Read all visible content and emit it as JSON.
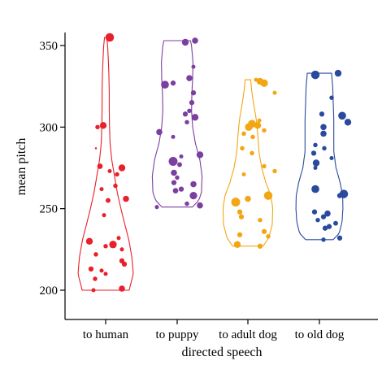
{
  "chart_data": {
    "type": "violin",
    "xlabel": "directed speech",
    "ylabel": "mean pitch",
    "ylim": [
      195,
      357
    ],
    "yticks": [
      200,
      250,
      300,
      350
    ],
    "grid": false,
    "categories": [
      "to human",
      "to puppy",
      "to adult dog",
      "to old dog"
    ],
    "series": [
      {
        "color": "#e8202a",
        "range": [
          200,
          355
        ],
        "density": [
          [
            200,
            0.85
          ],
          [
            210,
            1.0
          ],
          [
            220,
            0.95
          ],
          [
            230,
            0.85
          ],
          [
            240,
            0.7
          ],
          [
            250,
            0.55
          ],
          [
            260,
            0.42
          ],
          [
            270,
            0.32
          ],
          [
            280,
            0.22
          ],
          [
            290,
            0.16
          ],
          [
            300,
            0.14
          ],
          [
            310,
            0.13
          ],
          [
            320,
            0.13
          ],
          [
            330,
            0.12
          ],
          [
            340,
            0.1
          ],
          [
            350,
            0.07
          ],
          [
            355,
            0.04
          ]
        ],
        "points": [
          {
            "y": 355,
            "s": 2.5,
            "dx": 0.05
          },
          {
            "y": 301,
            "s": 2,
            "dx": -0.03
          },
          {
            "y": 300,
            "s": 1.3,
            "dx": -0.1
          },
          {
            "y": 287,
            "s": 0.6,
            "dx": -0.12
          },
          {
            "y": 276,
            "s": 1.6,
            "dx": -0.07
          },
          {
            "y": 275,
            "s": 2,
            "dx": 0.2
          },
          {
            "y": 273,
            "s": 1.2,
            "dx": 0.05
          },
          {
            "y": 271,
            "s": 1.3,
            "dx": 0.14
          },
          {
            "y": 264,
            "s": 1.3,
            "dx": 0.12
          },
          {
            "y": 262,
            "s": 1.2,
            "dx": -0.05
          },
          {
            "y": 256,
            "s": 1.8,
            "dx": 0.25
          },
          {
            "y": 255,
            "s": 1.4,
            "dx": 0.03
          },
          {
            "y": 246,
            "s": 1.2,
            "dx": -0.02
          },
          {
            "y": 232,
            "s": 1.2,
            "dx": 0.16
          },
          {
            "y": 230,
            "s": 2,
            "dx": -0.2
          },
          {
            "y": 228,
            "s": 2.2,
            "dx": 0.09
          },
          {
            "y": 227,
            "s": 1.3,
            "dx": 0.0
          },
          {
            "y": 225,
            "s": 1.2,
            "dx": 0.2
          },
          {
            "y": 222,
            "s": 1.3,
            "dx": -0.12
          },
          {
            "y": 218,
            "s": 1.5,
            "dx": 0.2
          },
          {
            "y": 216,
            "s": 1.5,
            "dx": 0.23
          },
          {
            "y": 213,
            "s": 1.5,
            "dx": -0.18
          },
          {
            "y": 212,
            "s": 1.2,
            "dx": -0.05
          },
          {
            "y": 210,
            "s": 1.2,
            "dx": 0.0
          },
          {
            "y": 207,
            "s": 1.3,
            "dx": -0.13
          },
          {
            "y": 201,
            "s": 1.8,
            "dx": 0.2
          },
          {
            "y": 200,
            "s": 1.2,
            "dx": -0.15
          }
        ]
      },
      {
        "color": "#7b3fa0",
        "range": [
          251,
          353
        ],
        "density": [
          [
            251,
            0.55
          ],
          [
            255,
            0.78
          ],
          [
            260,
            0.88
          ],
          [
            270,
            0.9
          ],
          [
            280,
            0.82
          ],
          [
            290,
            0.66
          ],
          [
            300,
            0.56
          ],
          [
            310,
            0.52
          ],
          [
            320,
            0.53
          ],
          [
            330,
            0.56
          ],
          [
            340,
            0.57
          ],
          [
            350,
            0.52
          ],
          [
            353,
            0.48
          ]
        ],
        "points": [
          {
            "y": 353,
            "s": 1.8,
            "dx": 0.22
          },
          {
            "y": 352,
            "s": 2,
            "dx": 0.1
          },
          {
            "y": 337,
            "s": 1.2,
            "dx": 0.2
          },
          {
            "y": 330,
            "s": 1.8,
            "dx": 0.15
          },
          {
            "y": 327,
            "s": 1.5,
            "dx": -0.05
          },
          {
            "y": 326,
            "s": 2.3,
            "dx": -0.15
          },
          {
            "y": 321,
            "s": 1.5,
            "dx": 0.2
          },
          {
            "y": 315,
            "s": 1.5,
            "dx": 0.18
          },
          {
            "y": 310,
            "s": 1.3,
            "dx": 0.15
          },
          {
            "y": 308,
            "s": 1.5,
            "dx": 0.1
          },
          {
            "y": 306,
            "s": 2,
            "dx": 0.22
          },
          {
            "y": 303,
            "s": 1.3,
            "dx": 0.12
          },
          {
            "y": 297,
            "s": 1.8,
            "dx": -0.22
          },
          {
            "y": 294,
            "s": 1.2,
            "dx": -0.05
          },
          {
            "y": 283,
            "s": 2,
            "dx": 0.28
          },
          {
            "y": 282,
            "s": 1.2,
            "dx": 0.05
          },
          {
            "y": 279,
            "s": 2.6,
            "dx": -0.05
          },
          {
            "y": 277,
            "s": 1.4,
            "dx": 0.03
          },
          {
            "y": 272,
            "s": 1.8,
            "dx": -0.04
          },
          {
            "y": 269,
            "s": 1.3,
            "dx": 0.0
          },
          {
            "y": 266,
            "s": 1.5,
            "dx": -0.04
          },
          {
            "y": 265,
            "s": 1.8,
            "dx": 0.2
          },
          {
            "y": 262,
            "s": 1.5,
            "dx": 0.05
          },
          {
            "y": 261,
            "s": 1.6,
            "dx": -0.02
          },
          {
            "y": 258,
            "s": 2.2,
            "dx": 0.2
          },
          {
            "y": 253,
            "s": 1.3,
            "dx": 0.12
          },
          {
            "y": 252,
            "s": 1.8,
            "dx": 0.28
          },
          {
            "y": 251,
            "s": 1.2,
            "dx": -0.25
          }
        ]
      },
      {
        "color": "#f3a614",
        "range": [
          227,
          329
        ],
        "density": [
          [
            227,
            0.55
          ],
          [
            232,
            0.75
          ],
          [
            240,
            0.88
          ],
          [
            250,
            0.9
          ],
          [
            258,
            0.83
          ],
          [
            266,
            0.65
          ],
          [
            275,
            0.5
          ],
          [
            285,
            0.4
          ],
          [
            295,
            0.36
          ],
          [
            305,
            0.3
          ],
          [
            315,
            0.2
          ],
          [
            322,
            0.14
          ],
          [
            329,
            0.1
          ]
        ],
        "points": [
          {
            "y": 329,
            "s": 1.2,
            "dx": 0.1
          },
          {
            "y": 328,
            "s": 2,
            "dx": 0.15
          },
          {
            "y": 327,
            "s": 2.2,
            "dx": 0.2
          },
          {
            "y": 321,
            "s": 1.2,
            "dx": 0.33
          },
          {
            "y": 304,
            "s": 1.2,
            "dx": 0.14
          },
          {
            "y": 302,
            "s": 2.3,
            "dx": 0.05
          },
          {
            "y": 301,
            "s": 2,
            "dx": 0.12
          },
          {
            "y": 300,
            "s": 2.2,
            "dx": 0.01
          },
          {
            "y": 298,
            "s": 1.3,
            "dx": 0.2
          },
          {
            "y": 296,
            "s": 1.3,
            "dx": -0.05
          },
          {
            "y": 294,
            "s": 1.3,
            "dx": 0.06
          },
          {
            "y": 287,
            "s": 1.3,
            "dx": -0.07
          },
          {
            "y": 284,
            "s": 1.3,
            "dx": 0.05
          },
          {
            "y": 276,
            "s": 1.3,
            "dx": 0.2
          },
          {
            "y": 273,
            "s": 1.3,
            "dx": 0.33
          },
          {
            "y": 271,
            "s": 1.2,
            "dx": -0.05
          },
          {
            "y": 258,
            "s": 2.5,
            "dx": 0.25
          },
          {
            "y": 256,
            "s": 1.8,
            "dx": 0.0
          },
          {
            "y": 254,
            "s": 2.6,
            "dx": -0.15
          },
          {
            "y": 248,
            "s": 1.5,
            "dx": -0.1
          },
          {
            "y": 245,
            "s": 1.5,
            "dx": -0.08
          },
          {
            "y": 243,
            "s": 1.3,
            "dx": 0.15
          },
          {
            "y": 236,
            "s": 1.5,
            "dx": 0.2
          },
          {
            "y": 234,
            "s": 1.5,
            "dx": -0.1
          },
          {
            "y": 233,
            "s": 1.3,
            "dx": 0.25
          },
          {
            "y": 228,
            "s": 2,
            "dx": -0.13
          },
          {
            "y": 227,
            "s": 1.5,
            "dx": 0.15
          }
        ]
      },
      {
        "color": "#2a4a9e",
        "range": [
          231,
          333
        ],
        "density": [
          [
            231,
            0.5
          ],
          [
            235,
            0.72
          ],
          [
            242,
            0.82
          ],
          [
            250,
            0.85
          ],
          [
            258,
            0.84
          ],
          [
            266,
            0.75
          ],
          [
            275,
            0.6
          ],
          [
            285,
            0.52
          ],
          [
            295,
            0.52
          ],
          [
            305,
            0.52
          ],
          [
            315,
            0.5
          ],
          [
            325,
            0.48
          ],
          [
            333,
            0.44
          ]
        ],
        "points": [
          {
            "y": 333,
            "s": 2,
            "dx": 0.23
          },
          {
            "y": 332,
            "s": 2.5,
            "dx": -0.05
          },
          {
            "y": 318,
            "s": 1.3,
            "dx": 0.15
          },
          {
            "y": 308,
            "s": 1.5,
            "dx": 0.03
          },
          {
            "y": 307,
            "s": 2.3,
            "dx": 0.28
          },
          {
            "y": 303,
            "s": 2,
            "dx": 0.35
          },
          {
            "y": 300,
            "s": 1.8,
            "dx": 0.05
          },
          {
            "y": 296,
            "s": 1.8,
            "dx": 0.05
          },
          {
            "y": 289,
            "s": 1.3,
            "dx": -0.05
          },
          {
            "y": 287,
            "s": 1.3,
            "dx": 0.06
          },
          {
            "y": 284,
            "s": 1.5,
            "dx": -0.07
          },
          {
            "y": 281,
            "s": 1.2,
            "dx": 0.15
          },
          {
            "y": 278,
            "s": 2,
            "dx": -0.04
          },
          {
            "y": 275,
            "s": 1.2,
            "dx": -0.05
          },
          {
            "y": 262,
            "s": 2.3,
            "dx": -0.05
          },
          {
            "y": 259,
            "s": 2.5,
            "dx": 0.3
          },
          {
            "y": 258,
            "s": 1.5,
            "dx": 0.25
          },
          {
            "y": 248,
            "s": 1.5,
            "dx": -0.06
          },
          {
            "y": 247,
            "s": 1.8,
            "dx": 0.1
          },
          {
            "y": 245,
            "s": 1.5,
            "dx": 0.05
          },
          {
            "y": 243,
            "s": 1.3,
            "dx": -0.02
          },
          {
            "y": 241,
            "s": 1.4,
            "dx": 0.2
          },
          {
            "y": 239,
            "s": 1.5,
            "dx": 0.12
          },
          {
            "y": 238,
            "s": 1.5,
            "dx": 0.07
          },
          {
            "y": 232,
            "s": 1.5,
            "dx": 0.25
          },
          {
            "y": 231,
            "s": 1.3,
            "dx": 0.05
          }
        ]
      }
    ]
  }
}
